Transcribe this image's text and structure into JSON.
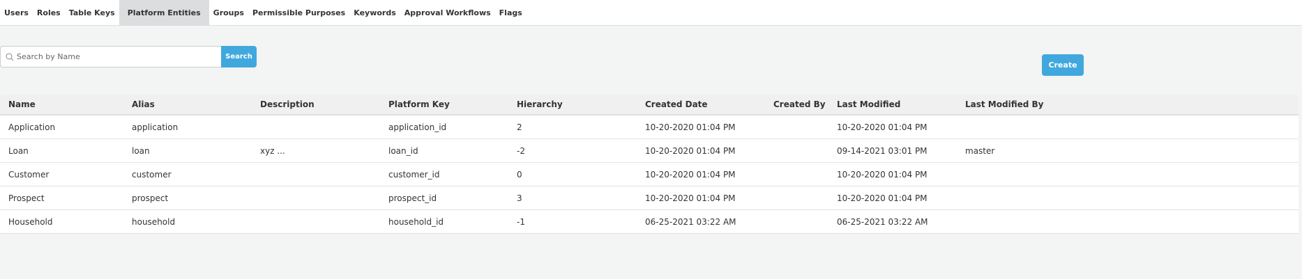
{
  "tabs": [
    "Users",
    "Roles",
    "Table Keys",
    "Platform Entities",
    "Groups",
    "Permissible Purposes",
    "Keywords",
    "Approval Workflows",
    "Flags"
  ],
  "active_tab": "Platform Entities",
  "search": {
    "placeholder": "Search by Name",
    "value": "",
    "button": "Search"
  },
  "create_label": "Create",
  "colors": {
    "accent": "#41a8de",
    "active_tab": "#dcdddf"
  },
  "table": {
    "columns": [
      "Name",
      "Alias",
      "Description",
      "Platform Key",
      "Hierarchy",
      "Created Date",
      "Created By",
      "Last Modified",
      "Last Modified By"
    ],
    "rows": [
      [
        "Application",
        "application",
        "",
        "application_id",
        "2",
        "10-20-2020 01:04 PM",
        "",
        "10-20-2020 01:04 PM",
        ""
      ],
      [
        "Loan",
        "loan",
        "xyz ...",
        "loan_id",
        "-2",
        "10-20-2020 01:04 PM",
        "",
        "09-14-2021 03:01 PM",
        "master"
      ],
      [
        "Customer",
        "customer",
        "",
        "customer_id",
        "0",
        "10-20-2020 01:04 PM",
        "",
        "10-20-2020 01:04 PM",
        ""
      ],
      [
        "Prospect",
        "prospect",
        "",
        "prospect_id",
        "3",
        "10-20-2020 01:04 PM",
        "",
        "10-20-2020 01:04 PM",
        ""
      ],
      [
        "Household",
        "household",
        "",
        "household_id",
        "-1",
        "06-25-2021 03:22 AM",
        "",
        "06-25-2021 03:22 AM",
        ""
      ]
    ]
  }
}
